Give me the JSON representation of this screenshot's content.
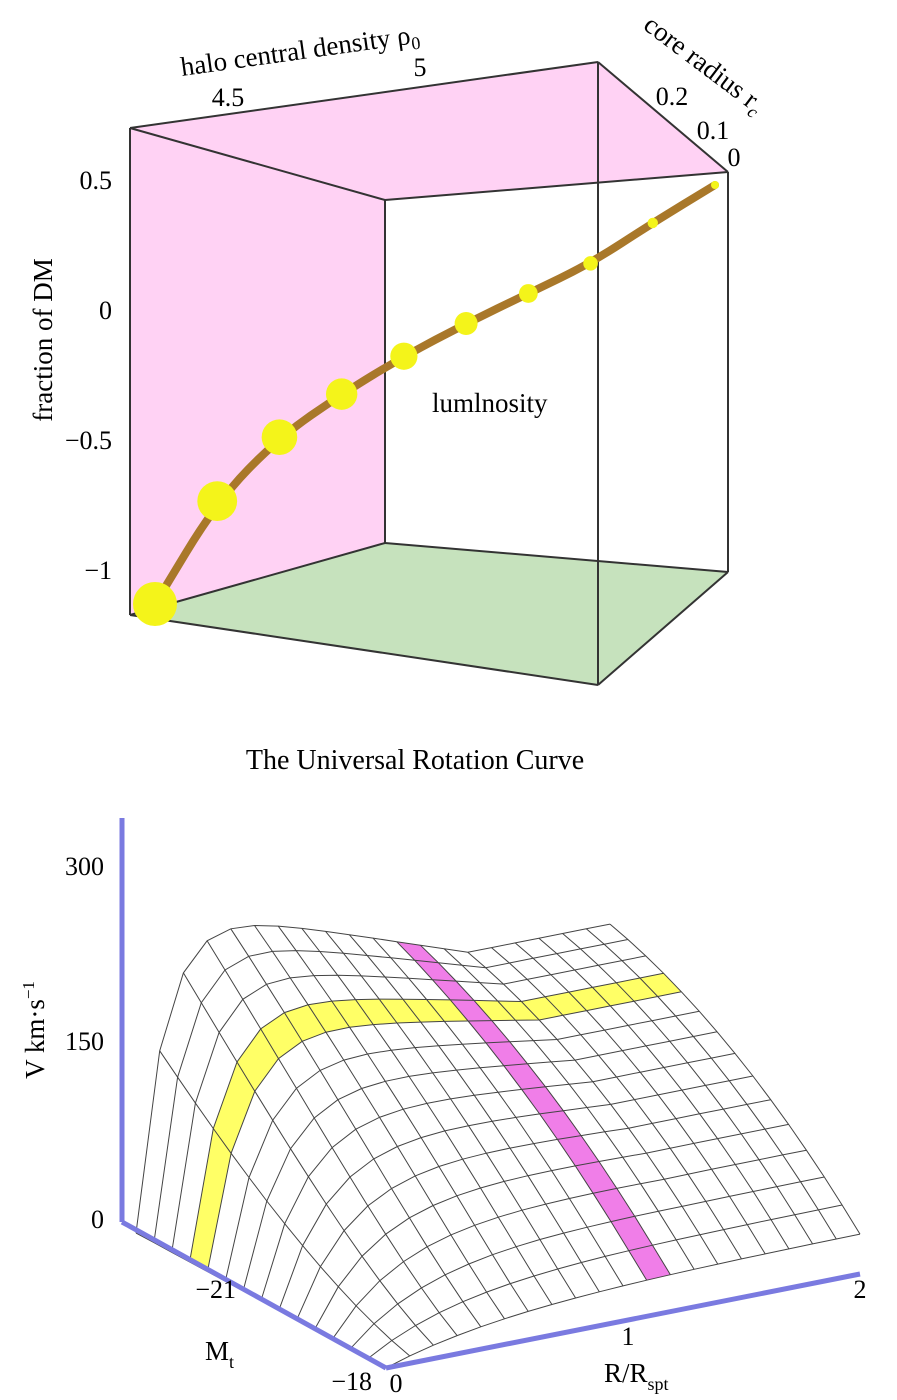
{
  "chart_data": [
    {
      "type": "line",
      "projection": "3d-box",
      "zlabel": "fraction of DM",
      "xlabel": "halo central density ρ0",
      "ylabel": "core radius rc",
      "inner_label": "lumlnosity",
      "z_ticks": [
        "0.5",
        "0",
        "−0.5",
        "−1"
      ],
      "z_tick_values": [
        0.5,
        0,
        -0.5,
        -1
      ],
      "x_ticks": [
        "4.5",
        "5"
      ],
      "y_ticks": [
        "0.2",
        "0.1",
        "0"
      ],
      "curve": {
        "points": [
          {
            "rho0": 4.4,
            "rc": 0.3,
            "fdm": -1.15
          },
          {
            "rho0": 4.55,
            "rc": 0.27,
            "fdm": -0.75
          },
          {
            "rho0": 4.7,
            "rc": 0.24,
            "fdm": -0.5
          },
          {
            "rho0": 4.85,
            "rc": 0.21,
            "fdm": -0.33
          },
          {
            "rho0": 5.0,
            "rc": 0.18,
            "fdm": -0.18
          },
          {
            "rho0": 5.15,
            "rc": 0.14,
            "fdm": -0.05
          },
          {
            "rho0": 5.3,
            "rc": 0.1,
            "fdm": 0.07
          },
          {
            "rho0": 5.45,
            "rc": 0.06,
            "fdm": 0.19
          },
          {
            "rho0": 5.6,
            "rc": 0.03,
            "fdm": 0.35
          },
          {
            "rho0": 5.75,
            "rc": 0.0,
            "fdm": 0.5
          }
        ]
      },
      "colors": {
        "side_panel": "#ffd2f4",
        "floor": "#c6e2bd",
        "curve": "#a9782a",
        "marker": "#f4f41a"
      }
    },
    {
      "type": "surface",
      "title": "The Universal Rotation Curve",
      "zlabel": "V km·s⁻¹",
      "xlabel": "R/Rspt",
      "ylabel": "Mt",
      "z_ticks": [
        "0",
        "150",
        "300"
      ],
      "z_tick_values": [
        0,
        150,
        300
      ],
      "x_ticks": [
        "0",
        "1",
        "2"
      ],
      "y_ticks": [
        "−21",
        "−18"
      ],
      "highlight_bands": [
        {
          "color": "#ffff66",
          "along": "R/Rspt",
          "description_value": "Mt ≈ −20"
        },
        {
          "color": "#f07ee8",
          "along": "Mt",
          "description_value": "R/Rspt ≈ 1"
        }
      ],
      "colors": {
        "axis": "#7a7ae0",
        "mesh": "#444444"
      }
    }
  ],
  "labels": {
    "top_zlabel": "fraction of DM",
    "top_xlabel_text": "halo central density ρ",
    "top_xlabel_sub": "0",
    "top_ylabel_text": "core radius r",
    "top_ylabel_sub": "c",
    "top_inner": "lumlnosity",
    "bottom_title": "The Universal Rotation Curve",
    "bottom_zlabel_text": "V km·s",
    "bottom_zlabel_sup": "−1",
    "bottom_xlabel_text": "R/R",
    "bottom_xlabel_sub": "spt",
    "bottom_ylabel_text": "M",
    "bottom_ylabel_sub": "t"
  }
}
